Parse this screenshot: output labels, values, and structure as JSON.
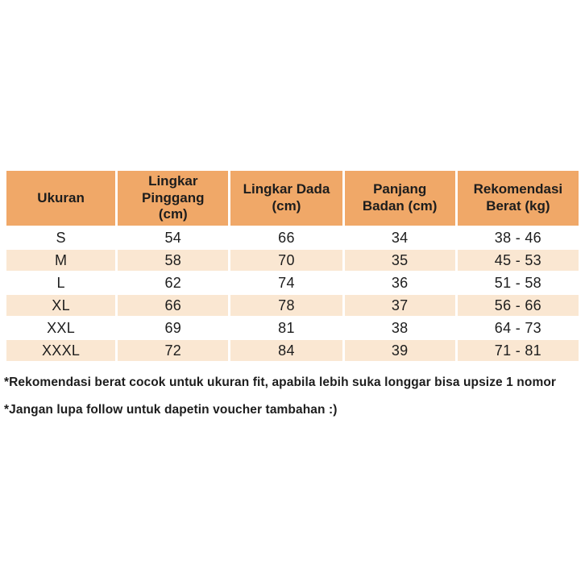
{
  "page": {
    "background_color": "#ffffff"
  },
  "table": {
    "header_bg_color": "#f0a868",
    "stripe_bg_color": "#fae7d2",
    "text_color": "#1d1d1d",
    "columns": [
      "Ukuran",
      "Lingkar\nPinggang\n(cm)",
      "Lingkar Dada\n(cm)",
      "Panjang\nBadan (cm)",
      "Rekomendasi\nBerat (kg)"
    ],
    "rows": [
      {
        "size": "S",
        "waist_cm": "54",
        "chest_cm": "66",
        "length_cm": "34",
        "weight_kg": "38 - 46"
      },
      {
        "size": "M",
        "waist_cm": "58",
        "chest_cm": "70",
        "length_cm": "35",
        "weight_kg": "45 - 53"
      },
      {
        "size": "L",
        "waist_cm": "62",
        "chest_cm": "74",
        "length_cm": "36",
        "weight_kg": "51 - 58"
      },
      {
        "size": "XL",
        "waist_cm": "66",
        "chest_cm": "78",
        "length_cm": "37",
        "weight_kg": "56 - 66"
      },
      {
        "size": "XXL",
        "waist_cm": "69",
        "chest_cm": "81",
        "length_cm": "38",
        "weight_kg": "64 - 73"
      },
      {
        "size": "XXXL",
        "waist_cm": "72",
        "chest_cm": "84",
        "length_cm": "39",
        "weight_kg": "71 - 81"
      }
    ]
  },
  "footnotes": [
    "*Rekomendasi berat cocok untuk ukuran fit, apabila lebih suka longgar bisa upsize 1 nomor",
    "*Jangan lupa follow untuk dapetin voucher tambahan :)"
  ]
}
